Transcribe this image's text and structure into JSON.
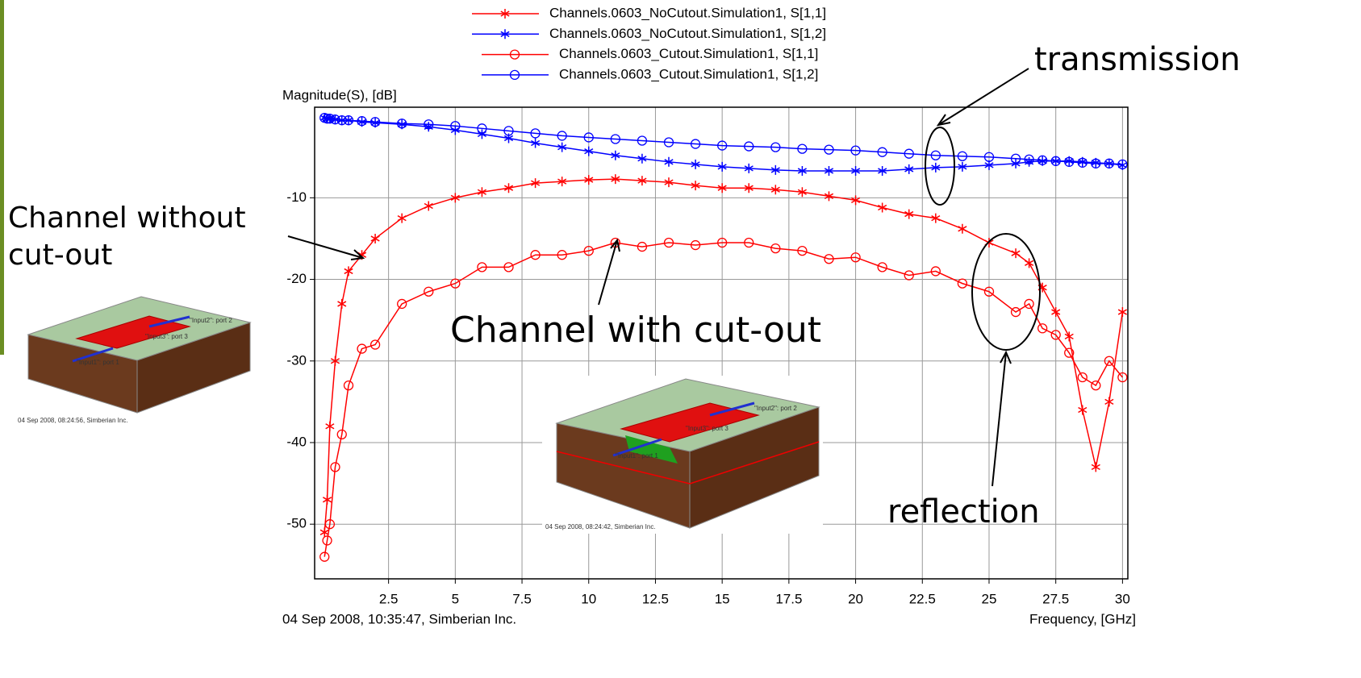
{
  "chart_data": {
    "type": "line",
    "y_axis_label": "Magnitude(S), [dB]",
    "x_axis_label": "Frequency, [GHz]",
    "footer": "04 Sep 2008, 10:35:47, Simberian Inc.",
    "x": [
      0.1,
      0.2,
      0.3,
      0.5,
      0.75,
      1,
      1.5,
      2,
      3,
      4,
      5,
      6,
      7,
      8,
      9,
      10,
      11,
      12,
      13,
      14,
      15,
      16,
      17,
      18,
      19,
      20,
      21,
      22,
      23,
      24,
      25,
      26,
      26.5,
      27,
      27.5,
      28,
      28.5,
      29,
      29.5,
      30
    ],
    "series": [
      {
        "name": "Channels.0603_NoCutout.Simulation1, S[1,1]",
        "color": "#ff0000",
        "marker": "star",
        "values": [
          -51,
          -47,
          -38,
          -30,
          -23,
          -19,
          -17,
          -15,
          -12.5,
          -11,
          -10,
          -9.3,
          -8.8,
          -8.2,
          -8,
          -7.8,
          -7.7,
          -7.9,
          -8.1,
          -8.5,
          -8.8,
          -8.8,
          -9,
          -9.3,
          -9.8,
          -10.3,
          -11.2,
          -12,
          -12.5,
          -13.8,
          -15.5,
          -16.8,
          -18,
          -21,
          -24,
          -27,
          -36,
          -43,
          -35,
          -24
        ]
      },
      {
        "name": "Channels.0603_NoCutout.Simulation1, S[1,2]",
        "color": "#0000ff",
        "marker": "star",
        "values": [
          -0.2,
          -0.3,
          -0.3,
          -0.4,
          -0.5,
          -0.5,
          -0.7,
          -0.8,
          -1.0,
          -1.3,
          -1.7,
          -2.2,
          -2.7,
          -3.3,
          -3.8,
          -4.3,
          -4.8,
          -5.2,
          -5.6,
          -5.9,
          -6.2,
          -6.4,
          -6.6,
          -6.7,
          -6.7,
          -6.7,
          -6.7,
          -6.5,
          -6.3,
          -6.2,
          -6.0,
          -5.8,
          -5.6,
          -5.5,
          -5.5,
          -5.5,
          -5.6,
          -5.7,
          -5.8,
          -6.0
        ]
      },
      {
        "name": "Channels.0603_Cutout.Simulation1, S[1,1]",
        "color": "#ff0000",
        "marker": "circle",
        "values": [
          -54,
          -52,
          -50,
          -43,
          -39,
          -33,
          -28.5,
          -28,
          -23,
          -21.5,
          -20.5,
          -18.5,
          -18.5,
          -17,
          -17,
          -16.5,
          -15.5,
          -16,
          -15.5,
          -15.8,
          -15.5,
          -15.5,
          -16.2,
          -16.5,
          -17.5,
          -17.3,
          -18.5,
          -19.5,
          -19,
          -20.5,
          -21.5,
          -24,
          -23,
          -26,
          -26.8,
          -29,
          -32,
          -33,
          -30,
          -32
        ]
      },
      {
        "name": "Channels.0603_Cutout.Simulation1, S[1,2]",
        "color": "#0000ff",
        "marker": "circle",
        "values": [
          -0.2,
          -0.3,
          -0.3,
          -0.4,
          -0.5,
          -0.5,
          -0.6,
          -0.7,
          -0.9,
          -1.0,
          -1.2,
          -1.5,
          -1.8,
          -2.1,
          -2.4,
          -2.6,
          -2.8,
          -3.0,
          -3.2,
          -3.4,
          -3.6,
          -3.7,
          -3.8,
          -4.0,
          -4.1,
          -4.2,
          -4.4,
          -4.6,
          -4.8,
          -4.9,
          -5.0,
          -5.2,
          -5.3,
          -5.4,
          -5.5,
          -5.6,
          -5.7,
          -5.8,
          -5.8,
          -5.9
        ]
      }
    ],
    "xlim": [
      -0.27,
      30.2
    ],
    "ylim": [
      -56.7,
      1.1
    ],
    "xticks": [
      2.5,
      5,
      7.5,
      10,
      12.5,
      15,
      17.5,
      20,
      22.5,
      25,
      27.5,
      30
    ],
    "yticks": [
      -10,
      -20,
      -30,
      -40,
      -50
    ],
    "grid": true,
    "annotations": {
      "transmission": "transmission",
      "reflection": "reflection",
      "without_line1": "Channel without",
      "without_line2": "cut-out",
      "with_cutout": "Channel with cut-out"
    }
  },
  "insets": {
    "left": {
      "caption": "04 Sep 2008, 08:24:56, Simberian Inc.",
      "port1": "\"Input1\": port 1",
      "port2": "\"Input2\": port 2",
      "port3": "\"Input3\": port 3"
    },
    "center": {
      "caption": "04 Sep 2008, 08:24:42, Simberian Inc.",
      "port1": "\"Input1\": port 1",
      "port2": "\"Input2\": port 2",
      "port3": "\"Input3\": port 3"
    }
  }
}
